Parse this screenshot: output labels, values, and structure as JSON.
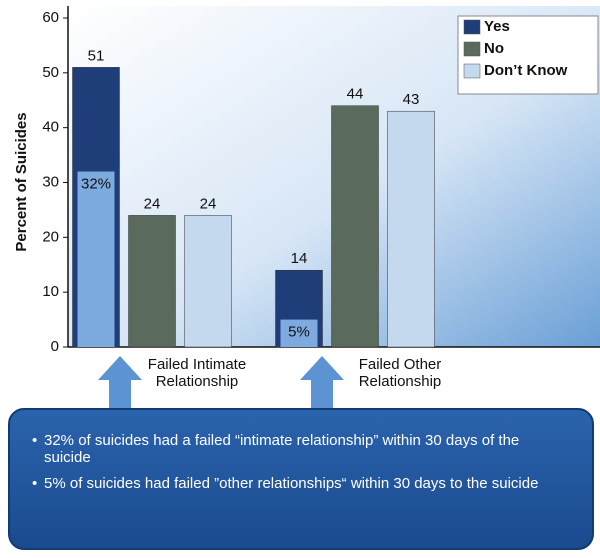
{
  "chart_data": {
    "type": "bar",
    "ylabel": "Percent of Suicides",
    "categories": [
      "Failed Intimate Relationship",
      "Failed Other Relationship"
    ],
    "series": [
      {
        "name": "Yes",
        "color": "#1f3d78",
        "values": [
          51,
          14
        ]
      },
      {
        "name": "No",
        "color": "#5a6b5e",
        "values": [
          24,
          44
        ]
      },
      {
        "name": "Don’t Know",
        "color": "#c4d8ee",
        "values": [
          24,
          43
        ]
      }
    ],
    "inner_values": [
      32,
      5
    ],
    "inner_value_labels": [
      "32%",
      "5%"
    ],
    "inner_color": "#7eabdf",
    "ylim": [
      0,
      60
    ],
    "yticks": [
      0,
      10,
      20,
      30,
      40,
      50,
      60
    ],
    "legend": "upper right",
    "notes": [
      "32% of suicides had a failed “intimate relationship” within 30 days of the suicide",
      "5% of suicides had failed ”other relationships“ within 30 days to the suicide"
    ]
  }
}
